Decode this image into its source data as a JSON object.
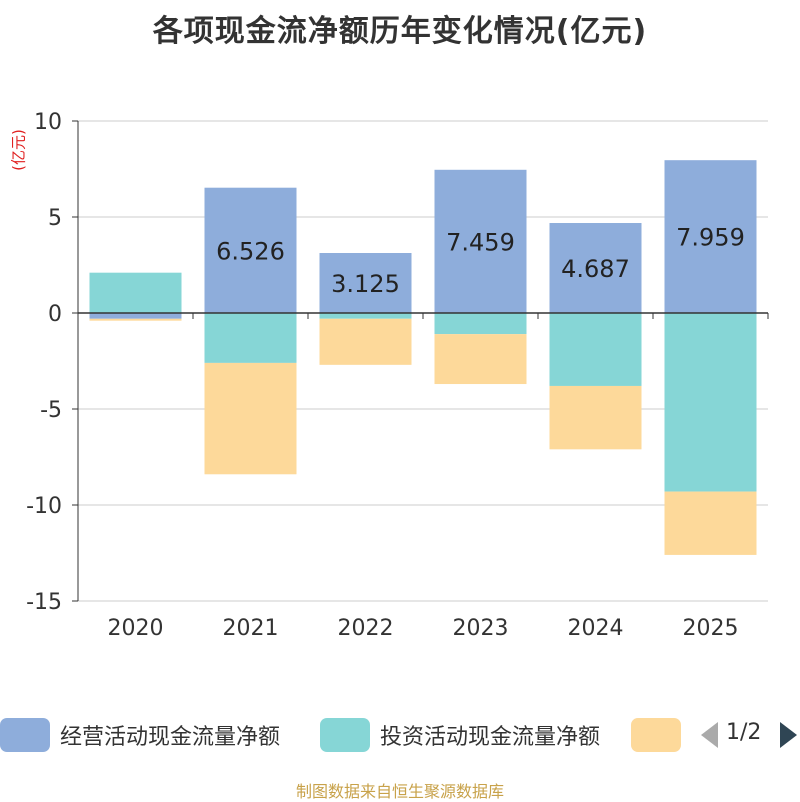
{
  "chart_data": {
    "type": "bar",
    "stacked": true,
    "title": "各项现金流净额历年变化情况(亿元)",
    "ylabel": "(亿元)",
    "xlabel": "",
    "ylim": [
      -15,
      10
    ],
    "yticks": [
      10,
      5,
      0,
      -5,
      -10,
      -15
    ],
    "grid": true,
    "categories": [
      "2020",
      "2021",
      "2022",
      "2023",
      "2024",
      "2025"
    ],
    "series": [
      {
        "name": "经营活动现金流量净额",
        "color": "#8eaddb",
        "values": [
          -0.3,
          6.526,
          3.125,
          7.459,
          4.687,
          7.959
        ],
        "labels": [
          "",
          "6.526",
          "3.125",
          "7.459",
          "4.687",
          "7.959"
        ]
      },
      {
        "name": "投资活动现金流量净额",
        "color": "#86d6d6",
        "values": [
          2.1,
          -2.6,
          -0.3,
          -1.1,
          -3.8,
          -9.3
        ],
        "labels": [
          "",
          "",
          "",
          "",
          "",
          ""
        ]
      },
      {
        "name": "",
        "color": "#fdd99a",
        "values": [
          -0.1,
          -5.8,
          -2.4,
          -2.6,
          -3.3,
          -3.3
        ],
        "labels": [
          "",
          "",
          "",
          "",
          "",
          ""
        ]
      }
    ],
    "legend": {
      "position": "bottom",
      "page": "1/2"
    }
  },
  "source": "制图数据来自恒生聚源数据库"
}
